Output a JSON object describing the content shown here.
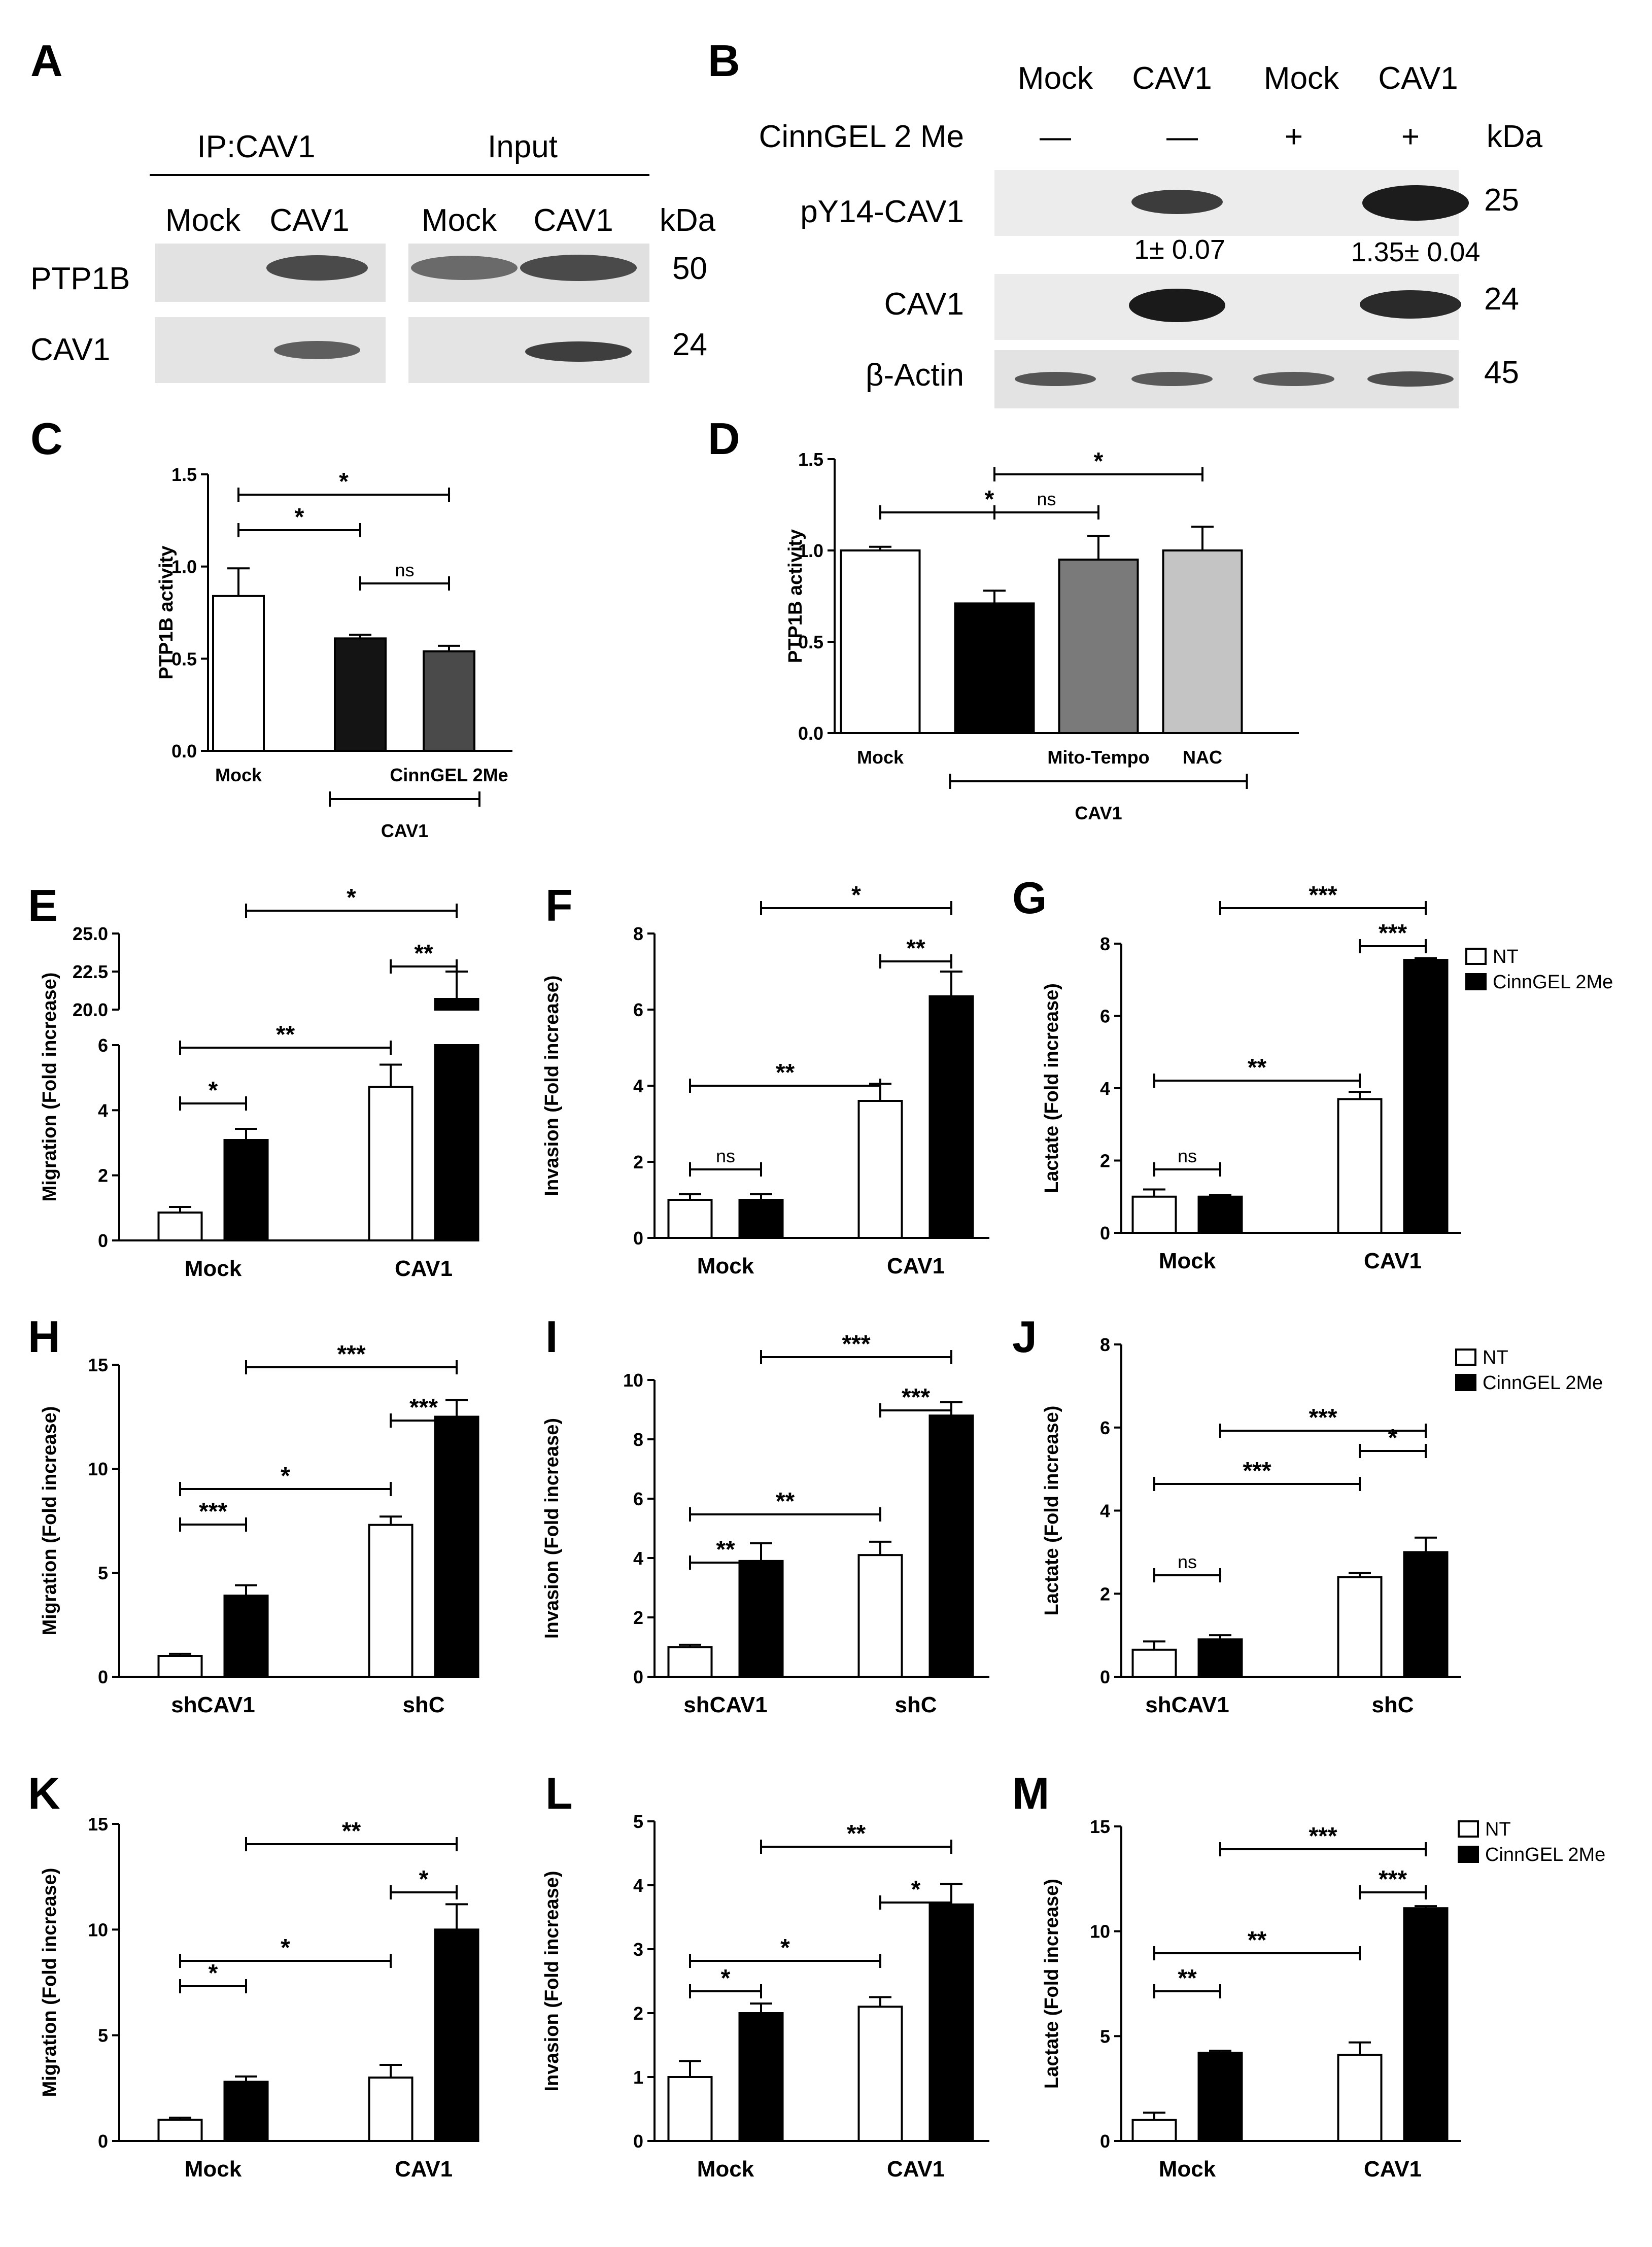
{
  "panels": {
    "A": {
      "label": "A",
      "ip": "IP:CAV1",
      "input": "Input",
      "lanes": [
        "Mock",
        "CAV1",
        "Mock",
        "CAV1"
      ],
      "kda": "kDa",
      "rows": [
        {
          "name": "PTP1B",
          "kda": "50"
        },
        {
          "name": "CAV1",
          "kda": "24"
        }
      ]
    },
    "B": {
      "label": "B",
      "lanes": [
        "Mock",
        "CAV1",
        "Mock",
        "CAV1"
      ],
      "treat_label": "CinnGEL 2 Me",
      "treat": [
        "—",
        "—",
        "+",
        "+"
      ],
      "kda": "kDa",
      "rows": [
        {
          "name": "pY14-CAV1",
          "kda": "25"
        },
        {
          "name": "CAV1",
          "kda": "24"
        },
        {
          "name": "β-Actin",
          "kda": "45"
        }
      ],
      "quant": [
        "1± 0.07",
        "1.35± 0.04"
      ]
    },
    "C": {
      "label": "C"
    },
    "D": {
      "label": "D"
    },
    "E": {
      "label": "E"
    },
    "F": {
      "label": "F"
    },
    "G": {
      "label": "G"
    },
    "H": {
      "label": "H"
    },
    "I": {
      "label": "I"
    },
    "J": {
      "label": "J"
    },
    "K": {
      "label": "K"
    },
    "L": {
      "label": "L"
    },
    "M": {
      "label": "M"
    }
  },
  "legend": {
    "nt": "NT",
    "treated": "CinnGEL 2Me"
  },
  "colors": {
    "nt": "#ffffff",
    "treated": "#000000",
    "cav1": "#141414",
    "cinngel": "#4a4a4a",
    "mito": "#7a7a7a",
    "nac": "#c4c4c4"
  },
  "chart_data": [
    {
      "id": "C",
      "type": "bar",
      "ylabel": "PTP1B activity",
      "ylim": [
        0,
        1.5
      ],
      "yticks": [
        "0.0",
        "0.5",
        "1.0",
        "1.5"
      ],
      "categories": [
        "Mock",
        "",
        "CinnGEL 2Me"
      ],
      "group_label": "CAV1",
      "values": [
        0.84,
        0.61,
        0.54
      ],
      "errors": [
        0.15,
        0.02,
        0.03
      ],
      "colors": [
        "#ffffff",
        "#141414",
        "#4a4a4a"
      ],
      "sig": [
        {
          "a": 0,
          "b": 1,
          "text": "*"
        },
        {
          "a": 0,
          "b": 2,
          "text": "*"
        },
        {
          "a": 1,
          "b": 2,
          "text": "ns"
        }
      ]
    },
    {
      "id": "D",
      "type": "bar",
      "ylabel": "PTP1B activity",
      "ylim": [
        0,
        1.5
      ],
      "yticks": [
        "0.0",
        "0.5",
        "1.0",
        "1.5"
      ],
      "categories": [
        "Mock",
        "",
        "Mito-Tempo",
        "NAC"
      ],
      "group_label": "CAV1",
      "values": [
        1.0,
        0.71,
        0.95,
        1.0
      ],
      "errors": [
        0.02,
        0.07,
        0.13,
        0.13
      ],
      "colors": [
        "#ffffff",
        "#000000",
        "#7a7a7a",
        "#c4c4c4"
      ],
      "sig": [
        {
          "a": 0,
          "b": 2,
          "text": "*"
        },
        {
          "a": 1,
          "b": 2,
          "text": "ns"
        },
        {
          "a": 1,
          "b": 3,
          "text": "*"
        }
      ]
    },
    {
      "id": "E",
      "type": "bar",
      "ylabel": "Migration (Fold increase)",
      "broken": true,
      "ylim": [
        0,
        7
      ],
      "ylim_upper": [
        20,
        25
      ],
      "yticks": [
        "0",
        "2",
        "4",
        "6"
      ],
      "yticks_upper": [
        "20.0",
        "22.5",
        "25.0"
      ],
      "categories": [
        "Mock",
        "CAV1"
      ],
      "series": [
        {
          "name": "NT",
          "values": [
            1.0,
            5.5
          ],
          "errors": [
            0.2,
            0.8
          ]
        },
        {
          "name": "CinnGEL 2Me",
          "values": [
            3.6,
            20.7
          ],
          "errors": [
            0.4,
            1.8
          ]
        }
      ],
      "sig": [
        {
          "a": 0,
          "b": 1,
          "text": "*"
        },
        {
          "a": 0,
          "b": 2,
          "text": "**"
        },
        {
          "a": 2,
          "b": 3,
          "text": "**"
        },
        {
          "a": 1,
          "b": 3,
          "text": "*"
        }
      ]
    },
    {
      "id": "F",
      "type": "bar",
      "ylabel": "Invasion (Fold increase)",
      "ylim": [
        0,
        8
      ],
      "yticks": [
        "0",
        "2",
        "4",
        "6",
        "8"
      ],
      "categories": [
        "Mock",
        "CAV1"
      ],
      "series": [
        {
          "name": "NT",
          "values": [
            1.0,
            3.6
          ],
          "errors": [
            0.15,
            0.45
          ]
        },
        {
          "name": "CinnGEL 2Me",
          "values": [
            1.0,
            6.35
          ],
          "errors": [
            0.15,
            0.65
          ]
        }
      ],
      "sig": [
        {
          "a": 0,
          "b": 1,
          "text": "ns"
        },
        {
          "a": 0,
          "b": 2,
          "text": "**"
        },
        {
          "a": 2,
          "b": 3,
          "text": "**"
        },
        {
          "a": 1,
          "b": 3,
          "text": "*"
        }
      ]
    },
    {
      "id": "G",
      "type": "bar",
      "ylabel": "Lactate (Fold increase)",
      "ylim": [
        0,
        8
      ],
      "yticks": [
        "0",
        "2",
        "4",
        "6",
        "8"
      ],
      "categories": [
        "Mock",
        "CAV1"
      ],
      "series": [
        {
          "name": "NT",
          "values": [
            1.0,
            3.7
          ],
          "errors": [
            0.2,
            0.2
          ]
        },
        {
          "name": "CinnGEL 2Me",
          "values": [
            1.0,
            7.55
          ],
          "errors": [
            0.05,
            0.05
          ]
        }
      ],
      "legend": true,
      "sig": [
        {
          "a": 0,
          "b": 1,
          "text": "ns"
        },
        {
          "a": 0,
          "b": 2,
          "text": "**"
        },
        {
          "a": 2,
          "b": 3,
          "text": "***"
        },
        {
          "a": 1,
          "b": 3,
          "text": "***"
        }
      ]
    },
    {
      "id": "H",
      "type": "bar",
      "ylabel": "Migration (Fold increase)",
      "ylim": [
        0,
        15
      ],
      "yticks": [
        "0",
        "5",
        "10",
        "15"
      ],
      "categories": [
        "shCAV1",
        "shC"
      ],
      "series": [
        {
          "name": "NT",
          "values": [
            1.0,
            7.3
          ],
          "errors": [
            0.1,
            0.4
          ]
        },
        {
          "name": "CinnGEL 2Me",
          "values": [
            3.9,
            12.5
          ],
          "errors": [
            0.5,
            0.8
          ]
        }
      ],
      "sig": [
        {
          "a": 0,
          "b": 1,
          "text": "***"
        },
        {
          "a": 0,
          "b": 2,
          "text": "*"
        },
        {
          "a": 2,
          "b": 3,
          "text": "***"
        },
        {
          "a": 1,
          "b": 3,
          "text": "***"
        }
      ]
    },
    {
      "id": "I",
      "type": "bar",
      "ylabel": "Invasion (Fold increase)",
      "ylim": [
        0,
        10
      ],
      "yticks": [
        "0",
        "2",
        "4",
        "6",
        "8",
        "10"
      ],
      "categories": [
        "shCAV1",
        "shC"
      ],
      "series": [
        {
          "name": "NT",
          "values": [
            1.0,
            4.1
          ],
          "errors": [
            0.08,
            0.45
          ]
        },
        {
          "name": "CinnGEL 2Me",
          "values": [
            3.9,
            8.8
          ],
          "errors": [
            0.6,
            0.45
          ]
        }
      ],
      "sig": [
        {
          "a": 0,
          "b": 1,
          "text": "**"
        },
        {
          "a": 0,
          "b": 2,
          "text": "**"
        },
        {
          "a": 2,
          "b": 3,
          "text": "***"
        },
        {
          "a": 1,
          "b": 3,
          "text": "***"
        }
      ]
    },
    {
      "id": "J",
      "type": "bar",
      "ylabel": "Lactate (Fold increase)",
      "ylim": [
        0,
        8
      ],
      "yticks": [
        "0",
        "2",
        "4",
        "6",
        "8"
      ],
      "categories": [
        "shCAV1",
        "shC"
      ],
      "series": [
        {
          "name": "NT",
          "values": [
            0.65,
            2.4
          ],
          "errors": [
            0.2,
            0.1
          ]
        },
        {
          "name": "CinnGEL 2Me",
          "values": [
            0.9,
            3.0
          ],
          "errors": [
            0.1,
            0.35
          ]
        }
      ],
      "legend": true,
      "sig": [
        {
          "a": 0,
          "b": 1,
          "text": "ns"
        },
        {
          "a": 0,
          "b": 2,
          "text": "***"
        },
        {
          "a": 2,
          "b": 3,
          "text": "*"
        },
        {
          "a": 1,
          "b": 3,
          "text": "***"
        }
      ]
    },
    {
      "id": "K",
      "type": "bar",
      "ylabel": "Migration (Fold increase)",
      "ylim": [
        0,
        15
      ],
      "yticks": [
        "0",
        "5",
        "10",
        "15"
      ],
      "categories": [
        "Mock",
        "CAV1"
      ],
      "series": [
        {
          "name": "NT",
          "values": [
            1.0,
            3.0
          ],
          "errors": [
            0.1,
            0.6
          ]
        },
        {
          "name": "CinnGEL 2Me",
          "values": [
            2.8,
            10.0
          ],
          "errors": [
            0.25,
            1.2
          ]
        }
      ],
      "sig": [
        {
          "a": 0,
          "b": 1,
          "text": "*"
        },
        {
          "a": 0,
          "b": 2,
          "text": "*"
        },
        {
          "a": 2,
          "b": 3,
          "text": "*"
        },
        {
          "a": 1,
          "b": 3,
          "text": "**"
        }
      ]
    },
    {
      "id": "L",
      "type": "bar",
      "ylabel": "Invasion (Fold increase)",
      "ylim": [
        0,
        5
      ],
      "yticks": [
        "0",
        "1",
        "2",
        "3",
        "4",
        "5"
      ],
      "categories": [
        "Mock",
        "CAV1"
      ],
      "series": [
        {
          "name": "NT",
          "values": [
            1.0,
            2.1
          ],
          "errors": [
            0.25,
            0.15
          ]
        },
        {
          "name": "CinnGEL 2Me",
          "values": [
            2.0,
            3.7
          ],
          "errors": [
            0.15,
            0.32
          ]
        }
      ],
      "sig": [
        {
          "a": 0,
          "b": 1,
          "text": "*"
        },
        {
          "a": 0,
          "b": 2,
          "text": "*"
        },
        {
          "a": 2,
          "b": 3,
          "text": "*"
        },
        {
          "a": 1,
          "b": 3,
          "text": "**"
        }
      ]
    },
    {
      "id": "M",
      "type": "bar",
      "ylabel": "Lactate (Fold increase)",
      "ylim": [
        0,
        15
      ],
      "yticks": [
        "0",
        "5",
        "10",
        "15"
      ],
      "categories": [
        "Mock",
        "CAV1"
      ],
      "series": [
        {
          "name": "NT",
          "values": [
            1.0,
            4.1
          ],
          "errors": [
            0.35,
            0.6
          ]
        },
        {
          "name": "CinnGEL 2Me",
          "values": [
            4.2,
            11.1
          ],
          "errors": [
            0.1,
            0.1
          ]
        }
      ],
      "legend": true,
      "sig": [
        {
          "a": 0,
          "b": 1,
          "text": "**"
        },
        {
          "a": 0,
          "b": 2,
          "text": "**"
        },
        {
          "a": 2,
          "b": 3,
          "text": "***"
        },
        {
          "a": 1,
          "b": 3,
          "text": "***"
        }
      ]
    }
  ]
}
